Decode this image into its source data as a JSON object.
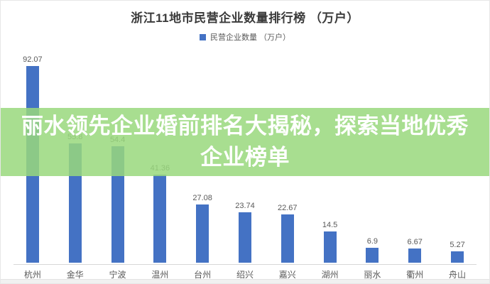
{
  "chart": {
    "title": "浙江11地市民营企业数量排行榜 （万户）",
    "legend_label": "民营企业数量 （万户）"
  },
  "banner": {
    "line1": "丽水领先企业婚前排名大揭秘，探索当地优秀",
    "line2": "企业榜单",
    "bg_color": "#a8de8f",
    "text_color": "#ffffff"
  },
  "colors": {
    "bar": "#4472c4",
    "value_label": "#595959",
    "axis_line": "#d8d8d8",
    "title_text": "#3a3a3a"
  },
  "chart_data": {
    "type": "bar",
    "title": "浙江11地市民营企业数量排行榜 （万户）",
    "legend": [
      "民营企业数量 （万户）"
    ],
    "legend_position": "top",
    "categories": [
      "杭州",
      "金华",
      "宁波",
      "温州",
      "台州",
      "绍兴",
      "嘉兴",
      "湖州",
      "丽水",
      "衢州",
      "舟山"
    ],
    "values": [
      92.07,
      55.8,
      54.4,
      41.36,
      27.08,
      23.74,
      22.67,
      14.5,
      6.9,
      6.67,
      5.27
    ],
    "value_labels": [
      "92.07",
      "55.8",
      "54.4",
      "41.36",
      "27.08",
      "23.74",
      "22.67",
      "14.5",
      "6.9",
      "6.67",
      "5.27"
    ],
    "xlabel": "",
    "ylabel": "",
    "y_axis_visible": false,
    "grid": false,
    "bar_color": "#4472c4",
    "note": "bars 2 and 3 value labels partially obscured by overlay banner"
  }
}
